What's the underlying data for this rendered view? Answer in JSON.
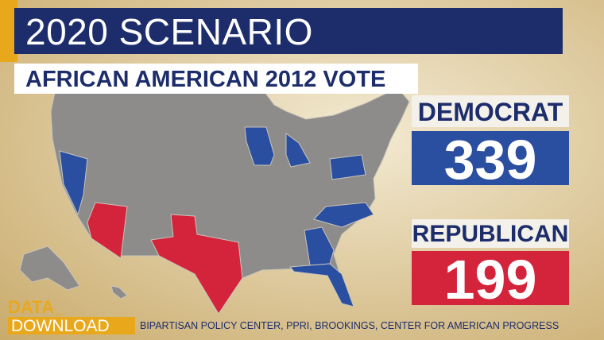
{
  "header": {
    "title": "2020 SCENARIO",
    "subtitle": "AFRICAN AMERICAN 2012 VOTE"
  },
  "results": [
    {
      "party": "DEMOCRAT",
      "electoral_votes": 339
    },
    {
      "party": "REPUBLICAN",
      "electoral_votes": 199
    }
  ],
  "footer": {
    "logo": [
      "DATA_",
      "DOWNLOAD"
    ],
    "source": "BIPARTISAN POLICY CENTER, PPRI, BROOKINGS, CENTER FOR AMERICAN PROGRESS"
  }
}
